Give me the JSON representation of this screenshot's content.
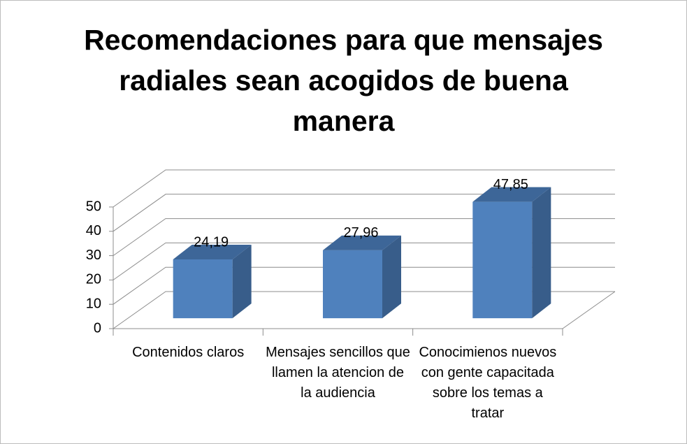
{
  "chart_data": {
    "type": "bar3d",
    "title": "Recomendaciones para que mensajes radiales sean acogidos de buena manera",
    "categories": [
      "Contenidos claros",
      "Mensajes sencillos que llamen la atencion de la audiencia",
      "Conocimienos nuevos con gente capacitada sobre los temas a tratar"
    ],
    "values": [
      24.19,
      27.96,
      47.85
    ],
    "value_labels": [
      "24,19",
      "27,96",
      "47,85"
    ],
    "color": "#4f81bd",
    "ylim": [
      0,
      50
    ],
    "yticks": [
      0,
      10,
      20,
      30,
      40,
      50
    ],
    "grid": true
  }
}
